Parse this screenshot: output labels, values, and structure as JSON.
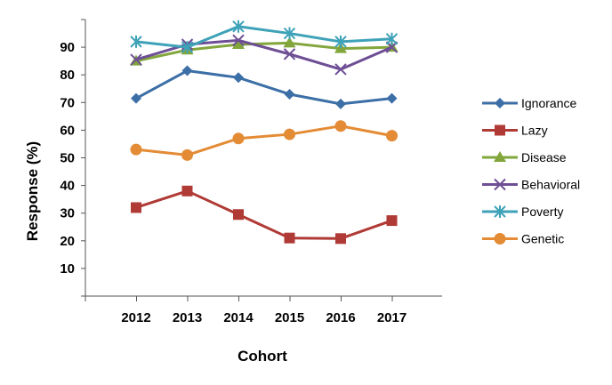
{
  "chart_data": {
    "type": "line",
    "x": [
      "2012",
      "2013",
      "2014",
      "2015",
      "2016",
      "2017"
    ],
    "xlabel": "Cohort",
    "ylabel": "Response (%)",
    "ylim": [
      0,
      100
    ],
    "yticks": [
      10,
      20,
      30,
      40,
      50,
      60,
      70,
      80,
      90
    ],
    "legend_position": "right",
    "grid": false,
    "series": [
      {
        "name": "Ignorance",
        "values": [
          71.5,
          81.5,
          79,
          73,
          69.5,
          71.5
        ],
        "color": "#3c6fa6",
        "marker": "diamond"
      },
      {
        "name": "Lazy",
        "values": [
          32,
          38,
          29.5,
          21,
          20.8,
          27.3
        ],
        "color": "#b03a35",
        "marker": "square"
      },
      {
        "name": "Disease",
        "values": [
          85,
          89,
          91,
          91.5,
          89.5,
          90
        ],
        "color": "#82a63c",
        "marker": "triangle"
      },
      {
        "name": "Behavioral",
        "values": [
          85.5,
          91,
          92.5,
          87.5,
          82,
          90
        ],
        "color": "#6e4e95",
        "marker": "x"
      },
      {
        "name": "Poverty",
        "values": [
          92,
          90,
          97.5,
          95,
          92,
          93
        ],
        "color": "#3ea2b8",
        "marker": "star"
      },
      {
        "name": "Genetic",
        "values": [
          53,
          51,
          57,
          58.5,
          61.5,
          58
        ],
        "color": "#e48b35",
        "marker": "circle"
      }
    ]
  }
}
